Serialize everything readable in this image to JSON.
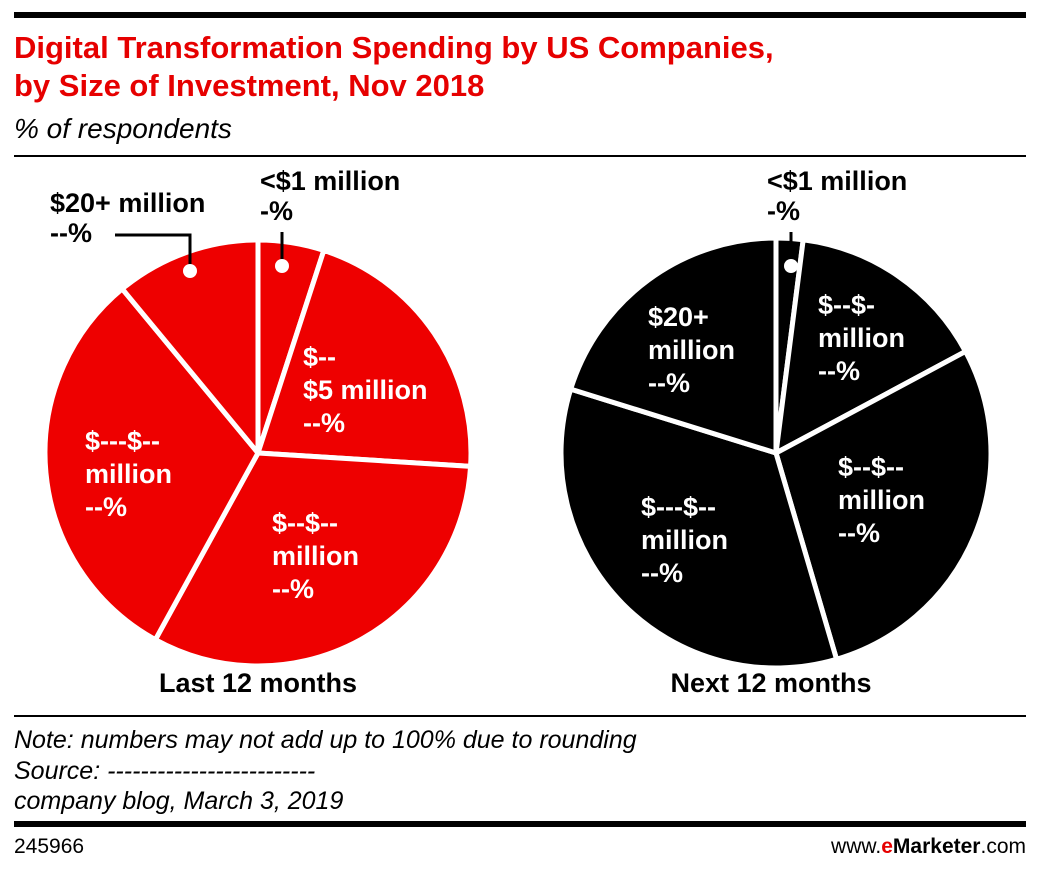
{
  "title": [
    "Digital Transformation Spending by US Companies,",
    "by Size of Investment, Nov 2018"
  ],
  "subtitle": "% of respondents",
  "chart_data": [
    {
      "type": "pie",
      "title": "Last 12 months",
      "color": "#ee0000",
      "label_color": "#ffffff",
      "categories": [
        [
          "<$1 million"
        ],
        [
          "$--",
          "$5 million"
        ],
        [
          "$--$--",
          "million"
        ],
        [
          "$---$--",
          "million"
        ],
        [
          "$20+ million"
        ]
      ],
      "values": [
        5,
        21,
        32,
        31,
        11
      ],
      "value_labels": [
        "-%",
        "--%",
        "--%",
        "--%",
        "--%"
      ]
    },
    {
      "type": "pie",
      "title": "Next 12 months",
      "color": "#000000",
      "label_color": "#ffffff",
      "categories": [
        [
          "<$1 million"
        ],
        [
          "$--$-",
          "million"
        ],
        [
          "$--$--",
          "million"
        ],
        [
          "$---$--",
          "million"
        ],
        [
          "$20+",
          "million"
        ]
      ],
      "values": [
        2,
        15,
        28,
        34,
        20
      ],
      "value_labels": [
        "-%",
        "--%",
        "--%",
        "--%",
        "--%"
      ]
    }
  ],
  "notes": [
    "Note: numbers may not add up to 100% due to rounding",
    "Source: -------------------------",
    "company blog, March 3, 2019"
  ],
  "id": "245966",
  "logo": [
    "www.",
    "e",
    "Marketer",
    ".com"
  ]
}
